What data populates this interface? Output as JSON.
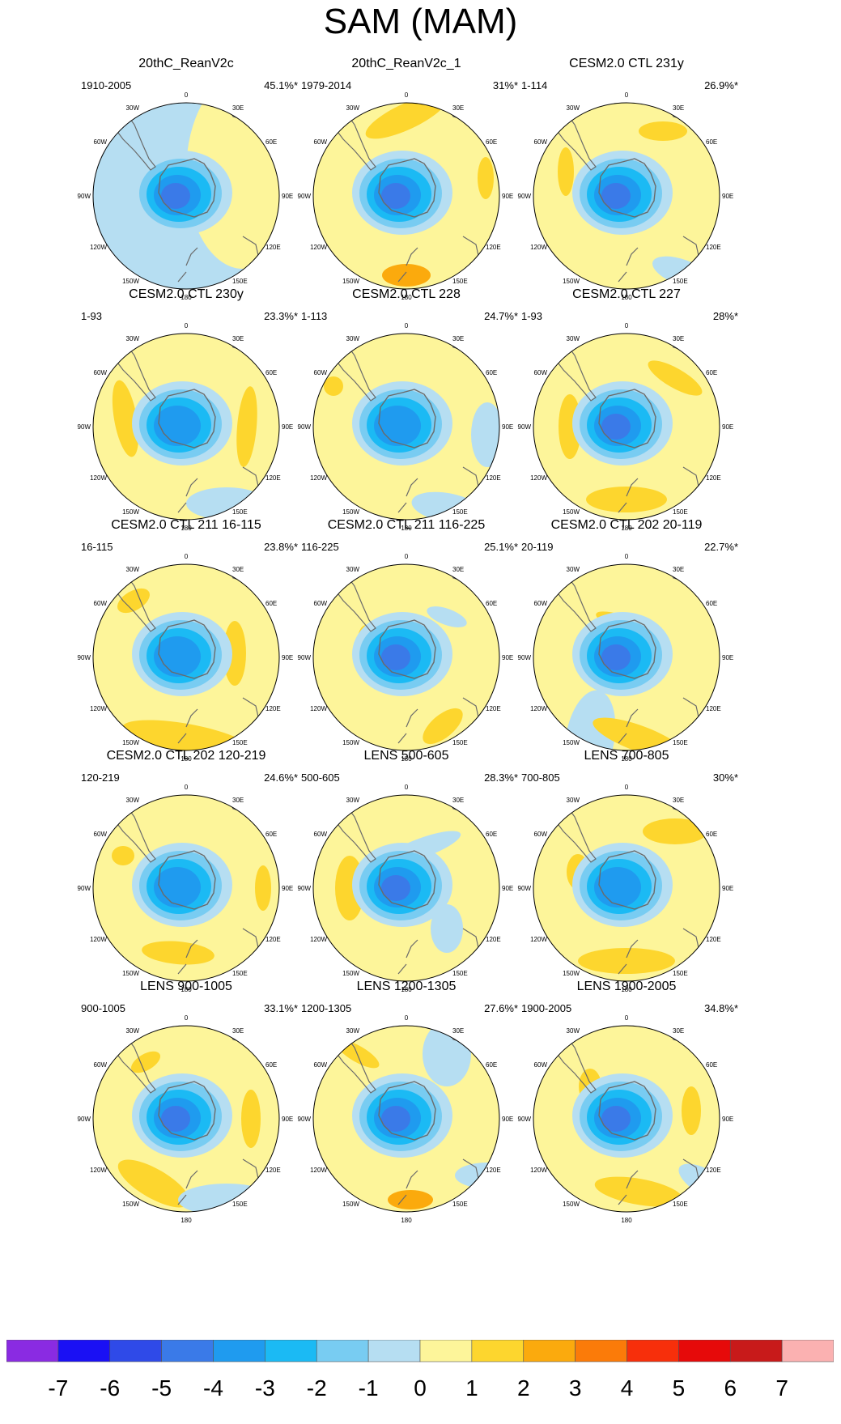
{
  "title": "SAM (MAM)",
  "palette": {
    "land_coast": "#6a6a6a",
    "bins": [
      {
        "range": "< -7",
        "color": "#8a2be2"
      },
      {
        "range": "-7..-6",
        "color": "#1a10f4"
      },
      {
        "range": "-6..-5",
        "color": "#2f4ae8"
      },
      {
        "range": "-5..-4",
        "color": "#3a7ae8"
      },
      {
        "range": "-4..-3",
        "color": "#1f9bef"
      },
      {
        "range": "-3..-2",
        "color": "#1bbaf4"
      },
      {
        "range": "-2..-1",
        "color": "#78ccf2"
      },
      {
        "range": "-1..0",
        "color": "#b6def2"
      },
      {
        "range": "0..1",
        "color": "#fdf59a"
      },
      {
        "range": "1..2",
        "color": "#fdd62e"
      },
      {
        "range": "2..3",
        "color": "#fbaa0d"
      },
      {
        "range": "3..4",
        "color": "#fb7b09"
      },
      {
        "range": "4..5",
        "color": "#f72f0b"
      },
      {
        "range": "5..6",
        "color": "#e60a0a"
      },
      {
        "range": "6..7",
        "color": "#c81a1a"
      },
      {
        "range": "> 7",
        "color": "#fbb1b1"
      }
    ]
  },
  "colorbar": {
    "labels": [
      "-7",
      "-6",
      "-5",
      "-4",
      "-3",
      "-2",
      "-1",
      "0",
      "1",
      "2",
      "3",
      "4",
      "5",
      "6",
      "7"
    ]
  },
  "lon_labels": {
    "top": "0",
    "bottom": "180",
    "r30": "30E",
    "r60": "60E",
    "r90": "90E",
    "r120": "120E",
    "r150": "150E",
    "l30": "30W",
    "l60": "60W",
    "l90": "90W",
    "l120": "120W",
    "l150": "150W"
  },
  "panels": [
    {
      "title": "20thC_ReanV2c",
      "range": "1910-2005",
      "pct": "45.1%*",
      "min": -4
    },
    {
      "title": "20thC_ReanV2c_1",
      "range": "1979-2014",
      "pct": "31%*",
      "min": -4
    },
    {
      "title": "CESM2.0 CTL 231y",
      "range": "1-114",
      "pct": "26.9%*",
      "min": -4
    },
    {
      "title": "CESM2.0 CTL 230y",
      "range": "1-93",
      "pct": "23.3%*",
      "min": -3
    },
    {
      "title": "CESM2.0 CTL 228",
      "range": "1-113",
      "pct": "24.7%*",
      "min": -3
    },
    {
      "title": "CESM2.0 CTL 227",
      "range": "1-93",
      "pct": "28%*",
      "min": -4
    },
    {
      "title": "CESM2.0 CTL 211 16-115",
      "range": "16-115",
      "pct": "23.8%*",
      "min": -3
    },
    {
      "title": "CESM2.0 CTL 211 116-225",
      "range": "116-225",
      "pct": "25.1%*",
      "min": -4
    },
    {
      "title": "CESM2.0 CTL 202 20-119",
      "range": "20-119",
      "pct": "22.7%*",
      "min": -4
    },
    {
      "title": "CESM2.0 CTL 202 120-219",
      "range": "120-219",
      "pct": "24.6%*",
      "min": -3
    },
    {
      "title": "LENS 500-605",
      "range": "500-605",
      "pct": "28.3%*",
      "min": -4
    },
    {
      "title": "LENS 700-805",
      "range": "700-805",
      "pct": "30%*",
      "min": -3
    },
    {
      "title": "LENS 900-1005",
      "range": "900-1005",
      "pct": "33.1%*",
      "min": -4
    },
    {
      "title": "LENS 1200-1305",
      "range": "1200-1305",
      "pct": "27.6%*",
      "min": -4
    },
    {
      "title": "LENS 1900-2005",
      "range": "1900-2005",
      "pct": "34.8%*",
      "min": -4
    }
  ]
}
